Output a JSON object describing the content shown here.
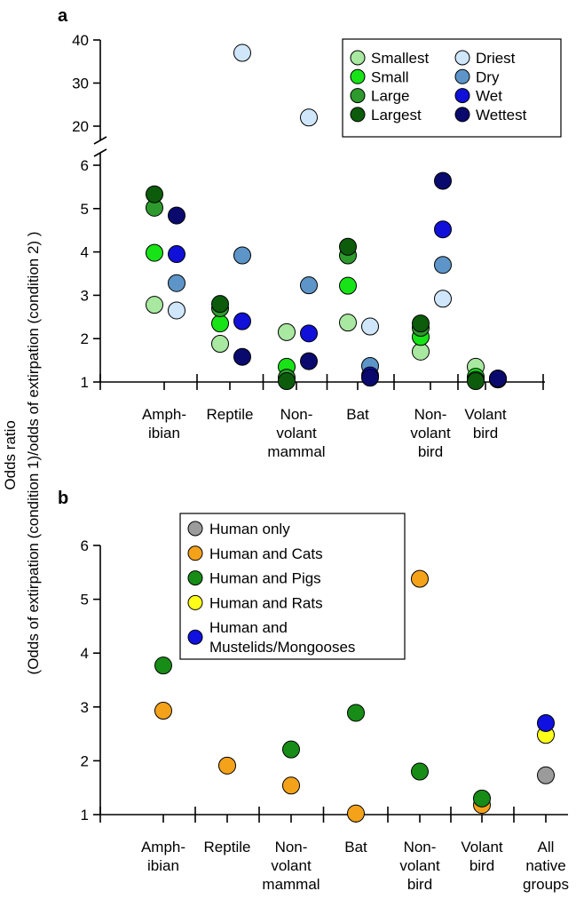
{
  "shared_ylabel_line1": "Odds ratio",
  "shared_ylabel_line2": "(Odds of extirpation (condition 1)/odds of extirpation (condition 2) )",
  "chart_data": [
    {
      "panel": "a",
      "type": "scatter",
      "categories": [
        [
          "Amph-",
          "ibian"
        ],
        [
          "Reptile"
        ],
        [
          "Non-",
          "volant",
          "mammal"
        ],
        [
          "Bat"
        ],
        [
          "Non-",
          "volant",
          "bird"
        ],
        [
          "Volant",
          "bird"
        ]
      ],
      "y_break": {
        "lower": [
          1,
          6
        ],
        "upper": [
          20,
          40
        ]
      },
      "yticks_lower": [
        1,
        2,
        3,
        4,
        5,
        6
      ],
      "yticks_upper": [
        20,
        30,
        40
      ],
      "legend_position": "top-right",
      "series": [
        {
          "name": "Smallest",
          "color": "#a8e8a0",
          "group": "size",
          "values": [
            2.78,
            1.88,
            2.15,
            2.37,
            1.7,
            1.35
          ]
        },
        {
          "name": "Small",
          "color": "#17e317",
          "group": "size",
          "values": [
            3.98,
            2.35,
            1.35,
            3.22,
            2.04,
            1.12
          ]
        },
        {
          "name": "Large",
          "color": "#2e9a2e",
          "group": "size",
          "values": [
            5.02,
            2.7,
            1.1,
            3.92,
            2.25,
            1.05
          ]
        },
        {
          "name": "Largest",
          "color": "#0c5c0c",
          "group": "size",
          "values": [
            5.33,
            2.8,
            1.02,
            4.12,
            2.35,
            1.02
          ]
        },
        {
          "name": "Driest",
          "color": "#cfe6fb",
          "group": "moisture",
          "values": [
            2.65,
            37.0,
            22.0,
            2.28,
            2.92,
            1.06
          ]
        },
        {
          "name": "Dry",
          "color": "#5d95c8",
          "group": "moisture",
          "values": [
            3.28,
            3.92,
            3.23,
            1.37,
            3.7,
            1.06
          ]
        },
        {
          "name": "Wet",
          "color": "#1010d8",
          "group": "moisture",
          "values": [
            3.95,
            2.4,
            2.12,
            1.15,
            4.52,
            1.08
          ]
        },
        {
          "name": "Wettest",
          "color": "#0a0a6e",
          "group": "moisture",
          "values": [
            4.84,
            1.58,
            1.48,
            1.1,
            5.64,
            1.08
          ]
        }
      ]
    },
    {
      "panel": "b",
      "type": "scatter",
      "categories": [
        [
          "Amph-",
          "ibian"
        ],
        [
          "Reptile"
        ],
        [
          "Non-",
          "volant",
          "mammal"
        ],
        [
          "Bat"
        ],
        [
          "Non-",
          "volant",
          "bird"
        ],
        [
          "Volant",
          "bird"
        ],
        [
          "All",
          "native",
          "groups"
        ]
      ],
      "ylim": [
        1,
        6
      ],
      "yticks": [
        1,
        2,
        3,
        4,
        5,
        6
      ],
      "legend_position": "top-center",
      "series": [
        {
          "name": "Human only",
          "legend_lines": [
            "Human only"
          ],
          "color": "#9b9b9b",
          "values": [
            null,
            null,
            null,
            null,
            null,
            null,
            1.73
          ]
        },
        {
          "name": "Human and Cats",
          "legend_lines": [
            "Human and Cats"
          ],
          "color": "#f5a21b",
          "values": [
            2.93,
            1.91,
            1.54,
            1.02,
            5.38,
            1.18,
            null
          ]
        },
        {
          "name": "Human and Pigs",
          "legend_lines": [
            "Human and Pigs"
          ],
          "color": "#178c17",
          "values": [
            3.77,
            null,
            2.21,
            2.89,
            1.8,
            1.3,
            null
          ]
        },
        {
          "name": "Human and Rats",
          "legend_lines": [
            "Human and Rats"
          ],
          "color": "#ffff1a",
          "values": [
            null,
            null,
            null,
            null,
            null,
            null,
            2.48
          ]
        },
        {
          "name": "Human and Mustelids/Mongooses",
          "legend_lines": [
            "Human and",
            "Mustelids/Mongooses"
          ],
          "color": "#1010e0",
          "values": [
            null,
            null,
            null,
            null,
            null,
            null,
            2.7
          ]
        }
      ]
    }
  ]
}
